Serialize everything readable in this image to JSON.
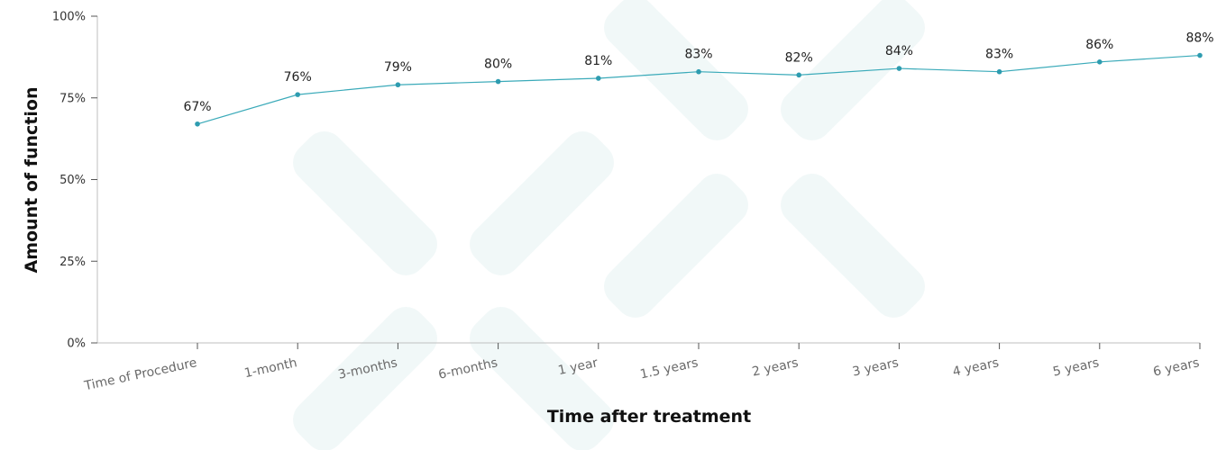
{
  "chart_data": {
    "type": "line",
    "title": "",
    "xlabel": "Time after treatment",
    "ylabel": "Amount of function",
    "categories": [
      "Time of Procedure",
      "1-month",
      "3-months",
      "6-months",
      "1 year",
      "1.5 years",
      "2 years",
      "3 years",
      "4 years",
      "5 years",
      "6 years"
    ],
    "series": [
      {
        "values": [
          67,
          76,
          79,
          80,
          81,
          83,
          82,
          84,
          83,
          86,
          88
        ]
      }
    ],
    "data_labels": [
      "67%",
      "76%",
      "79%",
      "80%",
      "81%",
      "83%",
      "82%",
      "84%",
      "83%",
      "86%",
      "88%"
    ],
    "ylim": [
      0,
      100
    ],
    "yticks": [
      0,
      25,
      50,
      75,
      100
    ],
    "ytick_labels": [
      "0%",
      "25%",
      "50%",
      "75%",
      "100%"
    ],
    "grid": false,
    "legend": "none",
    "colors": {
      "line": "#3aaab9",
      "marker": "#2e9cb0",
      "watermark": "#e6f3f3"
    }
  }
}
